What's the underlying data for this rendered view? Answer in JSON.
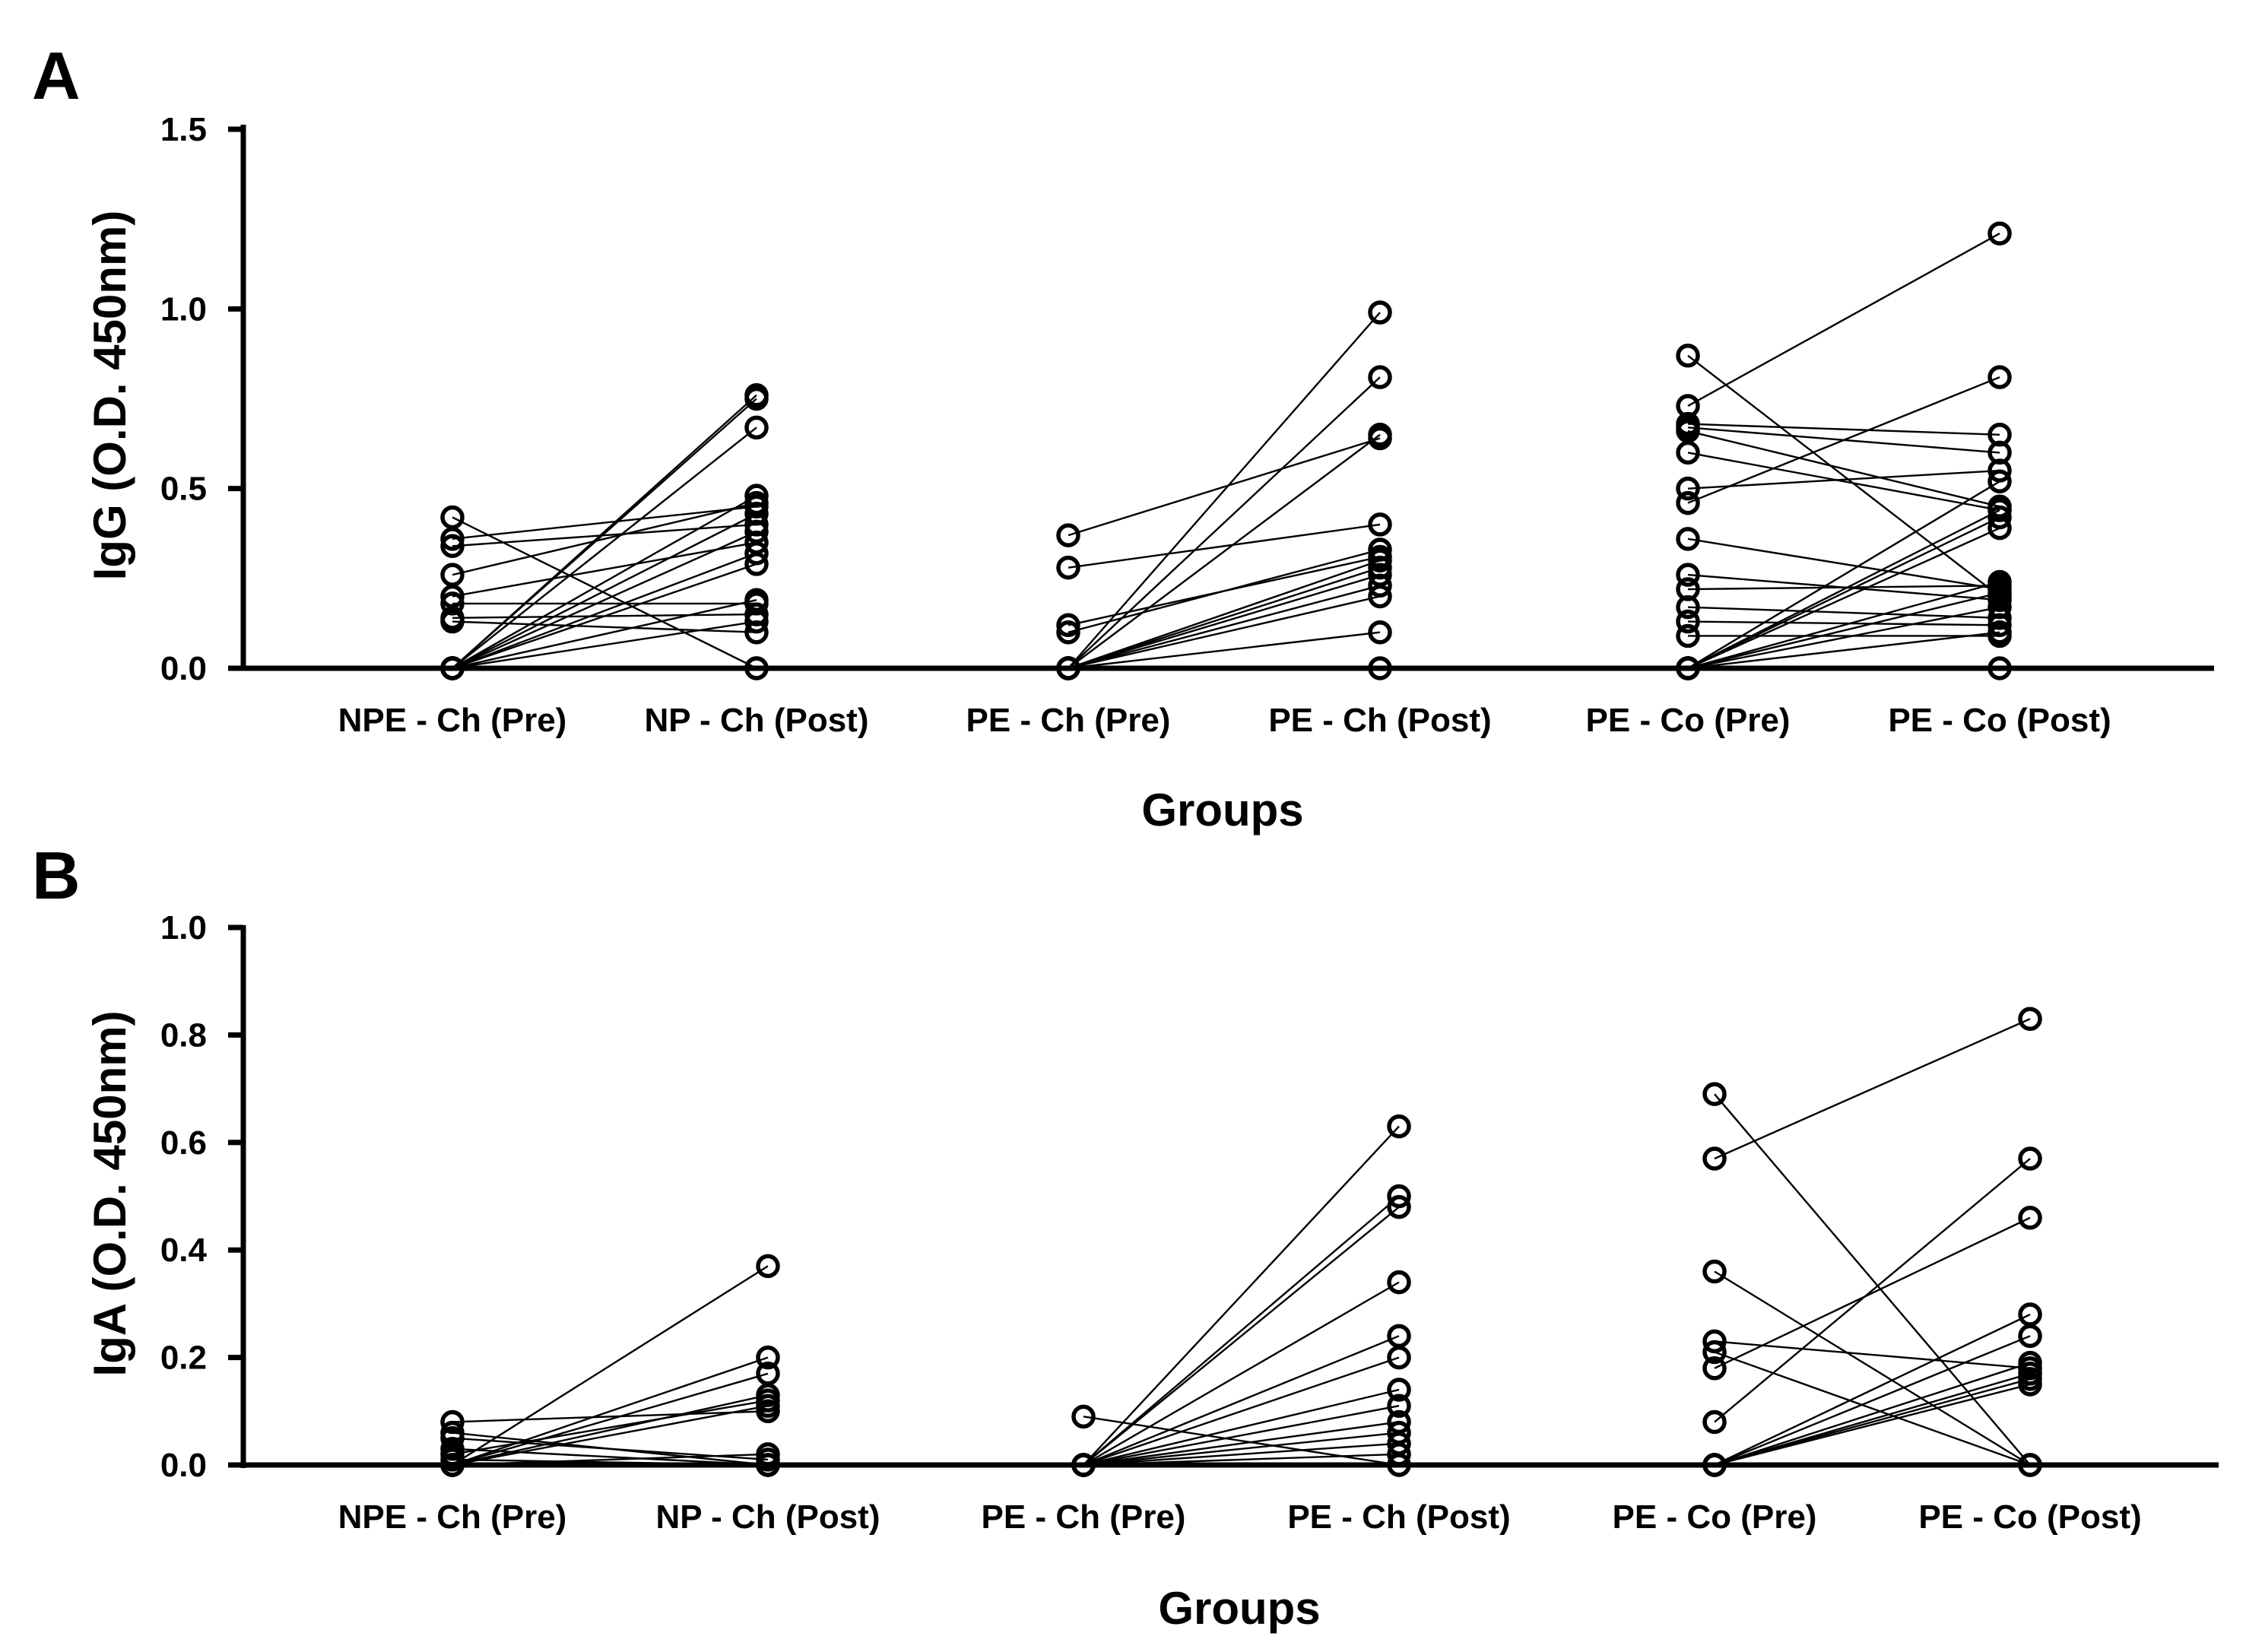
{
  "chart_data": [
    {
      "type": "scatter",
      "subtype": "paired-before-after",
      "panel": "A",
      "title": "",
      "xlabel": "Groups",
      "ylabel": "IgG (O.D. 450nm)",
      "ylim": [
        0,
        1.5
      ],
      "yticks": [
        "0.0",
        "0.5",
        "1.0",
        "1.5"
      ],
      "categories": [
        "NPE - Ch (Pre)",
        "NP - Ch (Post)",
        "PE - Ch (Pre)",
        "PE - Ch (Post)",
        "PE - Co (Pre)",
        "PE - Co (Post)"
      ],
      "pairs": [
        {
          "groups": [
            "NPE - Ch (Pre)",
            "NP - Ch (Post)"
          ],
          "values": [
            [
              0.42,
              0.0
            ],
            [
              0.36,
              0.45
            ],
            [
              0.34,
              0.4
            ],
            [
              0.26,
              0.46
            ],
            [
              0.2,
              0.35
            ],
            [
              0.18,
              0.18
            ],
            [
              0.14,
              0.15
            ],
            [
              0.13,
              0.1
            ],
            [
              0.0,
              0.76
            ],
            [
              0.0,
              0.75
            ],
            [
              0.0,
              0.67
            ],
            [
              0.0,
              0.48
            ],
            [
              0.0,
              0.43
            ],
            [
              0.0,
              0.38
            ],
            [
              0.0,
              0.32
            ],
            [
              0.0,
              0.29
            ],
            [
              0.0,
              0.19
            ],
            [
              0.0,
              0.13
            ],
            [
              0.0,
              0.0
            ]
          ]
        },
        {
          "groups": [
            "PE - Ch (Pre)",
            "PE - Ch (Post)"
          ],
          "values": [
            [
              0.37,
              0.64
            ],
            [
              0.28,
              0.4
            ],
            [
              0.12,
              0.31
            ],
            [
              0.1,
              0.33
            ],
            [
              0.0,
              0.99
            ],
            [
              0.0,
              0.81
            ],
            [
              0.0,
              0.65
            ],
            [
              0.0,
              0.3
            ],
            [
              0.0,
              0.28
            ],
            [
              0.0,
              0.26
            ],
            [
              0.0,
              0.23
            ],
            [
              0.0,
              0.2
            ],
            [
              0.0,
              0.1
            ],
            [
              0.0,
              0.0
            ]
          ]
        },
        {
          "groups": [
            "PE - Co (Pre)",
            "PE - Co (Post)"
          ],
          "values": [
            [
              0.87,
              0.2
            ],
            [
              0.73,
              1.21
            ],
            [
              0.68,
              0.65
            ],
            [
              0.67,
              0.6
            ],
            [
              0.66,
              0.45
            ],
            [
              0.6,
              0.44
            ],
            [
              0.5,
              0.55
            ],
            [
              0.46,
              0.81
            ],
            [
              0.36,
              0.22
            ],
            [
              0.26,
              0.19
            ],
            [
              0.22,
              0.23
            ],
            [
              0.17,
              0.14
            ],
            [
              0.13,
              0.12
            ],
            [
              0.09,
              0.09
            ],
            [
              0.0,
              0.52
            ],
            [
              0.0,
              0.44
            ],
            [
              0.0,
              0.42
            ],
            [
              0.0,
              0.39
            ],
            [
              0.0,
              0.24
            ],
            [
              0.0,
              0.21
            ],
            [
              0.0,
              0.17
            ],
            [
              0.0,
              0.1
            ],
            [
              0.0,
              0.0
            ]
          ]
        }
      ]
    },
    {
      "type": "scatter",
      "subtype": "paired-before-after",
      "panel": "B",
      "title": "",
      "xlabel": "Groups",
      "ylabel": "IgA (O.D. 450nm)",
      "ylim": [
        0,
        1.0
      ],
      "yticks": [
        "0.0",
        "0.2",
        "0.4",
        "0.6",
        "0.8",
        "1.0"
      ],
      "categories": [
        "NPE - Ch (Pre)",
        "NP - Ch (Post)",
        "PE - Ch (Pre)",
        "PE - Ch (Post)",
        "PE - Co (Pre)",
        "PE - Co (Post)"
      ],
      "pairs": [
        {
          "groups": [
            "NPE - Ch (Pre)",
            "NP - Ch (Post)"
          ],
          "values": [
            [
              0.08,
              0.1
            ],
            [
              0.06,
              0.0
            ],
            [
              0.05,
              0.01
            ],
            [
              0.03,
              0.0
            ],
            [
              0.02,
              0.12
            ],
            [
              0.01,
              0.0
            ],
            [
              0.0,
              0.37
            ],
            [
              0.0,
              0.2
            ],
            [
              0.0,
              0.17
            ],
            [
              0.0,
              0.13
            ],
            [
              0.0,
              0.11
            ],
            [
              0.0,
              0.02
            ],
            [
              0.0,
              0.0
            ]
          ]
        },
        {
          "groups": [
            "PE - Ch (Pre)",
            "PE - Ch (Post)"
          ],
          "values": [
            [
              0.09,
              0.0
            ],
            [
              0.0,
              0.63
            ],
            [
              0.0,
              0.5
            ],
            [
              0.0,
              0.48
            ],
            [
              0.0,
              0.34
            ],
            [
              0.0,
              0.24
            ],
            [
              0.0,
              0.2
            ],
            [
              0.0,
              0.14
            ],
            [
              0.0,
              0.11
            ],
            [
              0.0,
              0.08
            ],
            [
              0.0,
              0.06
            ],
            [
              0.0,
              0.04
            ],
            [
              0.0,
              0.02
            ],
            [
              0.0,
              0.0
            ]
          ]
        },
        {
          "groups": [
            "PE - Co (Pre)",
            "PE - Co (Post)"
          ],
          "values": [
            [
              0.69,
              0.0
            ],
            [
              0.57,
              0.83
            ],
            [
              0.36,
              0.0
            ],
            [
              0.23,
              0.18
            ],
            [
              0.21,
              0.0
            ],
            [
              0.18,
              0.46
            ],
            [
              0.08,
              0.57
            ],
            [
              0.0,
              0.28
            ],
            [
              0.0,
              0.24
            ],
            [
              0.0,
              0.19
            ],
            [
              0.0,
              0.17
            ],
            [
              0.0,
              0.16
            ],
            [
              0.0,
              0.15
            ]
          ]
        }
      ]
    }
  ]
}
